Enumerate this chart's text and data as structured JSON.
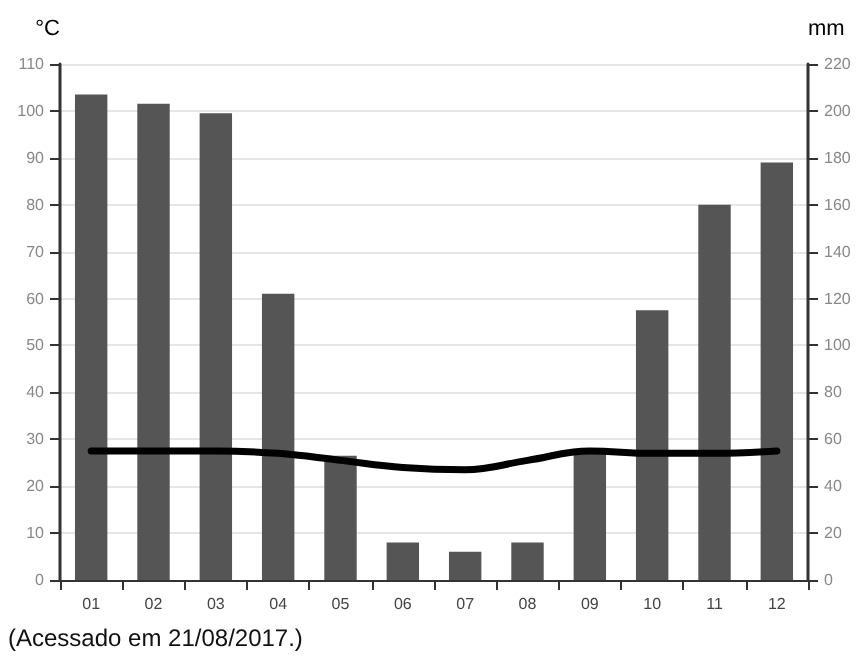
{
  "chart_data": {
    "type": "bar",
    "categories": [
      "01",
      "02",
      "03",
      "04",
      "05",
      "06",
      "07",
      "08",
      "09",
      "10",
      "11",
      "12"
    ],
    "ylabel": "°C",
    "y2label": "mm",
    "ylim": [
      0,
      110
    ],
    "yticks": [
      0,
      10,
      20,
      30,
      40,
      50,
      60,
      70,
      80,
      90,
      100,
      110
    ],
    "y2lim": [
      0,
      220
    ],
    "y2ticks": [
      0,
      20,
      40,
      60,
      80,
      100,
      120,
      140,
      160,
      180,
      200,
      220
    ],
    "grid": "y",
    "marker": "none",
    "line_style": "solid",
    "series": [
      {
        "axis": "y2",
        "color": "#555555",
        "values": [
          207,
          203,
          199,
          122,
          53,
          16,
          12,
          16,
          56,
          115,
          160,
          178
        ]
      },
      {
        "type": "line",
        "color": "#000000",
        "values": [
          27.5,
          27.5,
          27.5,
          27,
          25.5,
          24,
          23.5,
          25.5,
          27.5,
          27,
          27,
          27.5
        ]
      }
    ],
    "annotations": [
      "(Acessado em 21/08/2017.)"
    ]
  }
}
